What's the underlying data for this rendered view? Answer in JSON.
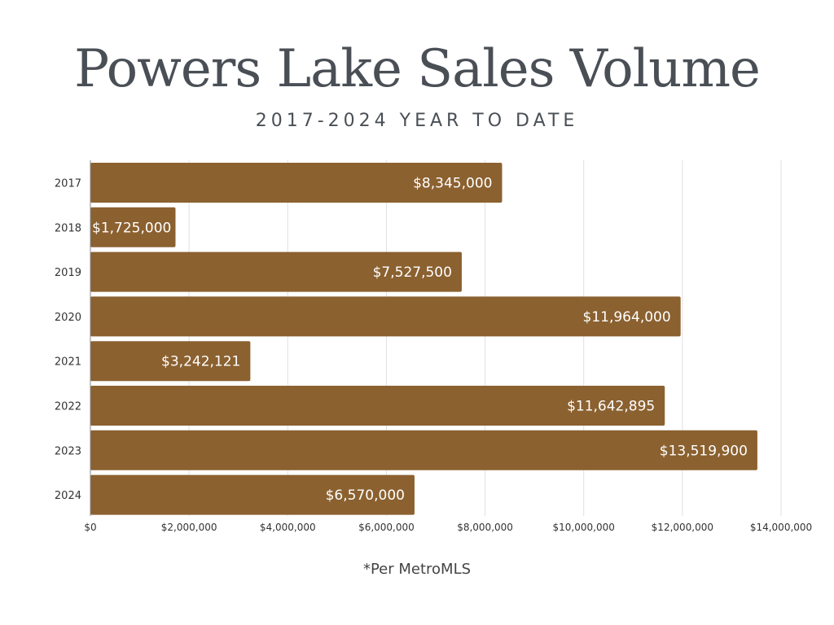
{
  "title": "Powers Lake Sales Volume",
  "subtitle": "2017-2024 YEAR TO DATE",
  "footnote": "*Per MetroMLS",
  "colors": {
    "bar": "#8b6130",
    "bar_label": "#ffffff",
    "grid": "#e0e0e0",
    "axis": "#888888",
    "tick_text": "#333333",
    "title": "#4a4f56"
  },
  "chart_data": {
    "type": "bar",
    "orientation": "horizontal",
    "title": "Powers Lake Sales Volume",
    "subtitle": "2017-2024 YEAR TO DATE",
    "categories": [
      "2017",
      "2018",
      "2019",
      "2020",
      "2021",
      "2022",
      "2023",
      "2024"
    ],
    "values": [
      8345000,
      1725000,
      7527500,
      11964000,
      3242121,
      11642895,
      13519900,
      6570000
    ],
    "data_labels": [
      "$8,345,000",
      "$1,725,000",
      "$7,527,500",
      "$11,964,000",
      "$3,242,121",
      "$11,642,895",
      "$13,519,900",
      "$6,570,000"
    ],
    "xlim": [
      0,
      14000000
    ],
    "xticks": [
      0,
      2000000,
      4000000,
      6000000,
      8000000,
      10000000,
      12000000,
      14000000
    ],
    "xtick_labels": [
      "$0",
      "$2,000,000",
      "$4,000,000",
      "$6,000,000",
      "$8,000,000",
      "$10,000,000",
      "$12,000,000",
      "$14,000,000"
    ],
    "xlabel": "",
    "ylabel": "",
    "grid": true,
    "legend": "none"
  }
}
